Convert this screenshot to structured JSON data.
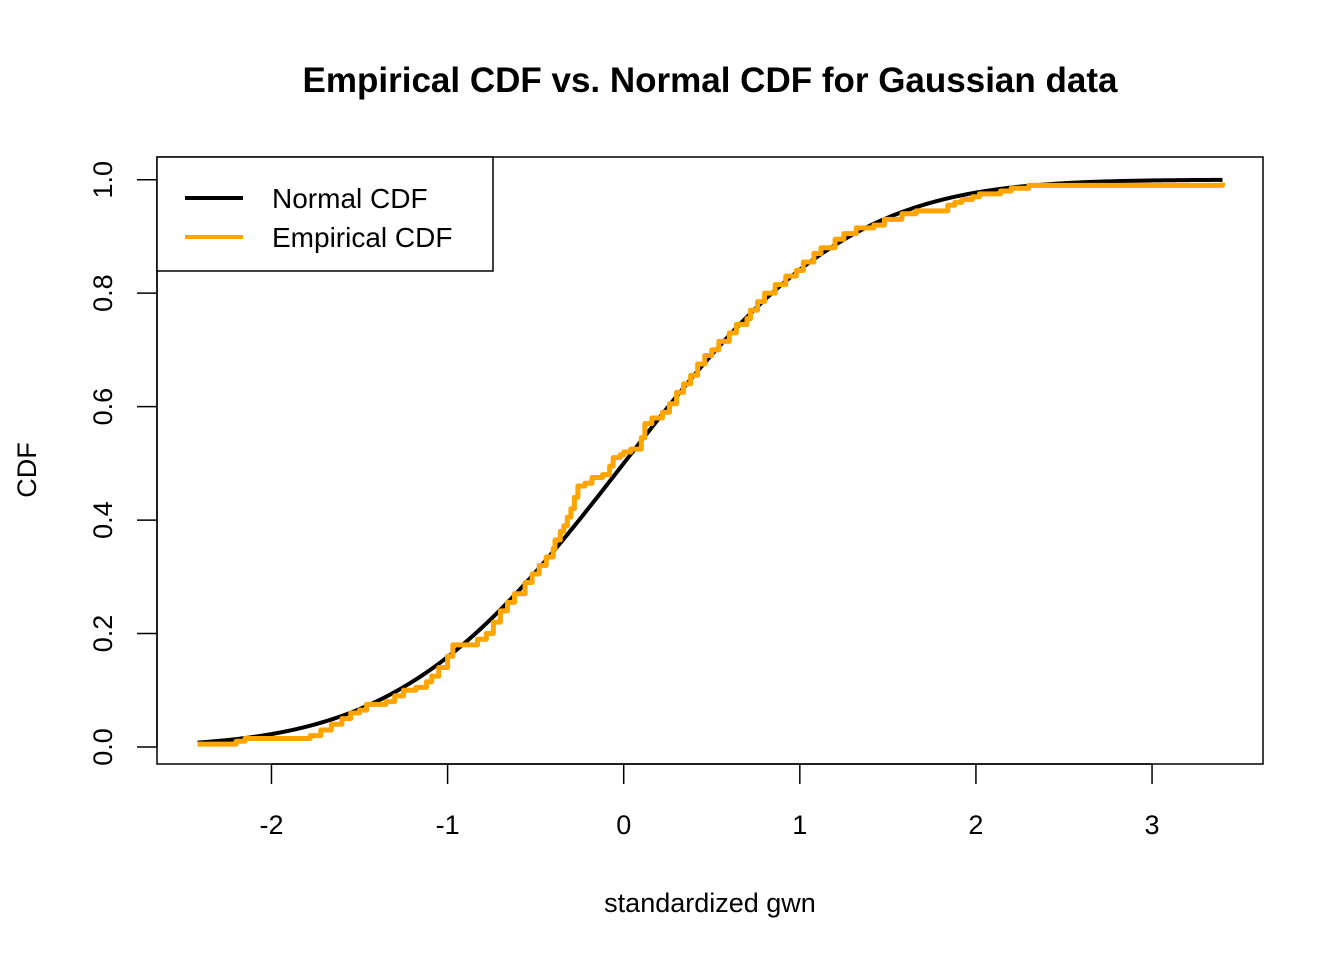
{
  "chart_data": {
    "type": "line",
    "title": "Empirical CDF vs. Normal CDF for Gaussian data",
    "xlabel": "standardized gwn",
    "ylabel": "CDF",
    "xlim": [
      -2.65,
      3.63
    ],
    "ylim": [
      -0.03,
      1.04
    ],
    "x_ticks": [
      -2,
      -1,
      0,
      1,
      2,
      3
    ],
    "x_tick_labels": [
      "-2",
      "-1",
      "0",
      "1",
      "2",
      "3"
    ],
    "y_ticks": [
      0.0,
      0.2,
      0.4,
      0.6,
      0.8,
      1.0
    ],
    "y_tick_labels": [
      "0.0",
      "0.2",
      "0.4",
      "0.6",
      "0.8",
      "1.0"
    ],
    "grid": false,
    "legend": {
      "position": "top-left",
      "entries": [
        {
          "label": "Normal CDF",
          "color": "#000000"
        },
        {
          "label": "Empirical CDF",
          "color": "#FFA500"
        }
      ]
    },
    "series": [
      {
        "name": "Normal CDF",
        "color": "#000000",
        "kind": "normal_cdf",
        "x_range": [
          -2.42,
          3.4
        ]
      },
      {
        "name": "Empirical CDF",
        "color": "#FFA500",
        "kind": "step",
        "x": [
          -2.42,
          -2.2,
          -2.15,
          -1.78,
          -1.72,
          -1.66,
          -1.6,
          -1.55,
          -1.5,
          -1.46,
          -1.35,
          -1.3,
          -1.25,
          -1.18,
          -1.12,
          -1.09,
          -1.05,
          -1.0,
          -0.97,
          -0.83,
          -0.78,
          -0.74,
          -0.7,
          -0.66,
          -0.62,
          -0.56,
          -0.52,
          -0.48,
          -0.44,
          -0.4,
          -0.39,
          -0.36,
          -0.34,
          -0.32,
          -0.3,
          -0.28,
          -0.26,
          -0.22,
          -0.18,
          -0.12,
          -0.08,
          -0.06,
          -0.02,
          0.0,
          0.04,
          0.1,
          0.12,
          0.16,
          0.22,
          0.26,
          0.3,
          0.34,
          0.38,
          0.42,
          0.46,
          0.5,
          0.54,
          0.6,
          0.64,
          0.7,
          0.72,
          0.76,
          0.8,
          0.86,
          0.92,
          0.98,
          1.02,
          1.08,
          1.12,
          1.2,
          1.25,
          1.32,
          1.42,
          1.48,
          1.58,
          1.66,
          1.84,
          1.88,
          1.92,
          1.98,
          2.02,
          2.14,
          2.2,
          2.3,
          3.4
        ],
        "y": [
          0.005,
          0.01,
          0.015,
          0.02,
          0.03,
          0.04,
          0.05,
          0.06,
          0.065,
          0.075,
          0.08,
          0.09,
          0.1,
          0.105,
          0.115,
          0.125,
          0.14,
          0.16,
          0.18,
          0.19,
          0.2,
          0.22,
          0.24,
          0.255,
          0.27,
          0.29,
          0.305,
          0.32,
          0.335,
          0.35,
          0.365,
          0.38,
          0.39,
          0.405,
          0.42,
          0.44,
          0.46,
          0.465,
          0.475,
          0.48,
          0.495,
          0.51,
          0.515,
          0.52,
          0.525,
          0.545,
          0.57,
          0.58,
          0.59,
          0.605,
          0.625,
          0.64,
          0.655,
          0.675,
          0.69,
          0.7,
          0.715,
          0.73,
          0.745,
          0.755,
          0.77,
          0.785,
          0.8,
          0.815,
          0.83,
          0.84,
          0.855,
          0.87,
          0.88,
          0.895,
          0.905,
          0.915,
          0.92,
          0.93,
          0.94,
          0.945,
          0.955,
          0.96,
          0.965,
          0.97,
          0.975,
          0.98,
          0.985,
          0.99,
          0.995
        ]
      }
    ]
  }
}
